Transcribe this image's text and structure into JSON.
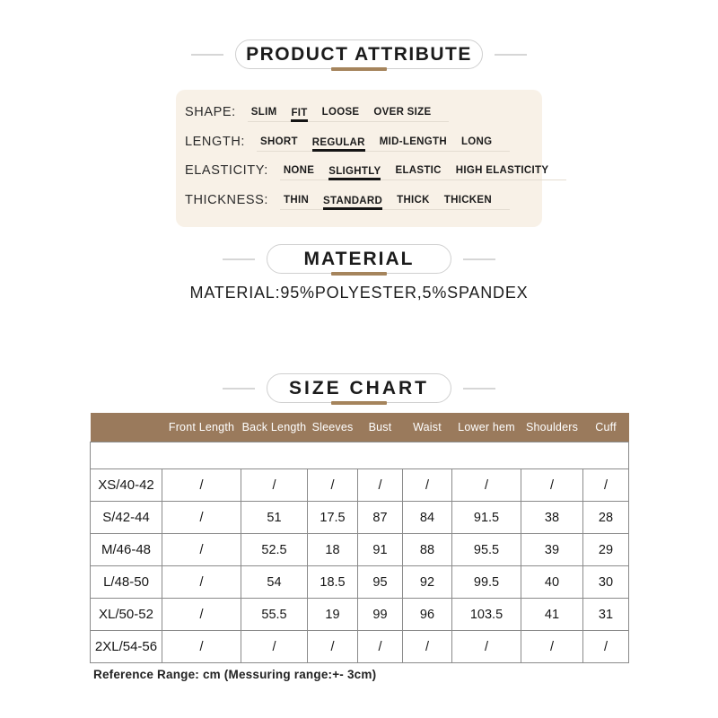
{
  "colors": {
    "header_brown": "#9a7a5c",
    "underline_brown": "#a5845c",
    "panel_beige": "#f8f1e7"
  },
  "headings": {
    "product_attribute": "PRODUCT ATTRIBUTE",
    "material": "MATERIAL",
    "size_chart": "SIZE CHART"
  },
  "attributes": [
    {
      "label": "SHAPE:",
      "options": [
        "SLIM",
        "FIT",
        "LOOSE",
        "OVER SIZE"
      ],
      "selected": 1
    },
    {
      "label": "LENGTH:",
      "options": [
        "SHORT",
        "REGULAR",
        "MID-LENGTH",
        "LONG"
      ],
      "selected": 1
    },
    {
      "label": "ELASTICITY:",
      "options": [
        "NONE",
        "SLIGHTLY",
        "ELASTIC",
        "HIGH ELASTICITY"
      ],
      "selected": 1
    },
    {
      "label": "THICKNESS:",
      "options": [
        "THIN",
        "STANDARD",
        "THICK",
        "THICKEN"
      ],
      "selected": 1
    }
  ],
  "material": {
    "composition": "MATERIAL:95%POLYESTER,5%SPANDEX"
  },
  "size_table": {
    "headers": [
      "",
      "Front Length",
      "Back Length",
      "Sleeves",
      "Bust",
      "Waist",
      "Lower hem",
      "Shoulders",
      "Cuff"
    ],
    "rows": [
      {
        "size": "XS/40-42",
        "values": [
          "/",
          "/",
          "/",
          "/",
          "/",
          "/",
          "/",
          "/"
        ]
      },
      {
        "size": "S/42-44",
        "values": [
          "/",
          "51",
          "17.5",
          "87",
          "84",
          "91.5",
          "38",
          "28"
        ]
      },
      {
        "size": "M/46-48",
        "values": [
          "/",
          "52.5",
          "18",
          "91",
          "88",
          "95.5",
          "39",
          "29"
        ]
      },
      {
        "size": "L/48-50",
        "values": [
          "/",
          "54",
          "18.5",
          "95",
          "92",
          "99.5",
          "40",
          "30"
        ]
      },
      {
        "size": "XL/50-52",
        "values": [
          "/",
          "55.5",
          "19",
          "99",
          "96",
          "103.5",
          "41",
          "31"
        ]
      },
      {
        "size": "2XL/54-56",
        "values": [
          "/",
          "/",
          "/",
          "/",
          "/",
          "/",
          "/",
          "/"
        ]
      }
    ]
  },
  "footnote": "Reference Range: cm (Messuring range:+- 3cm)"
}
